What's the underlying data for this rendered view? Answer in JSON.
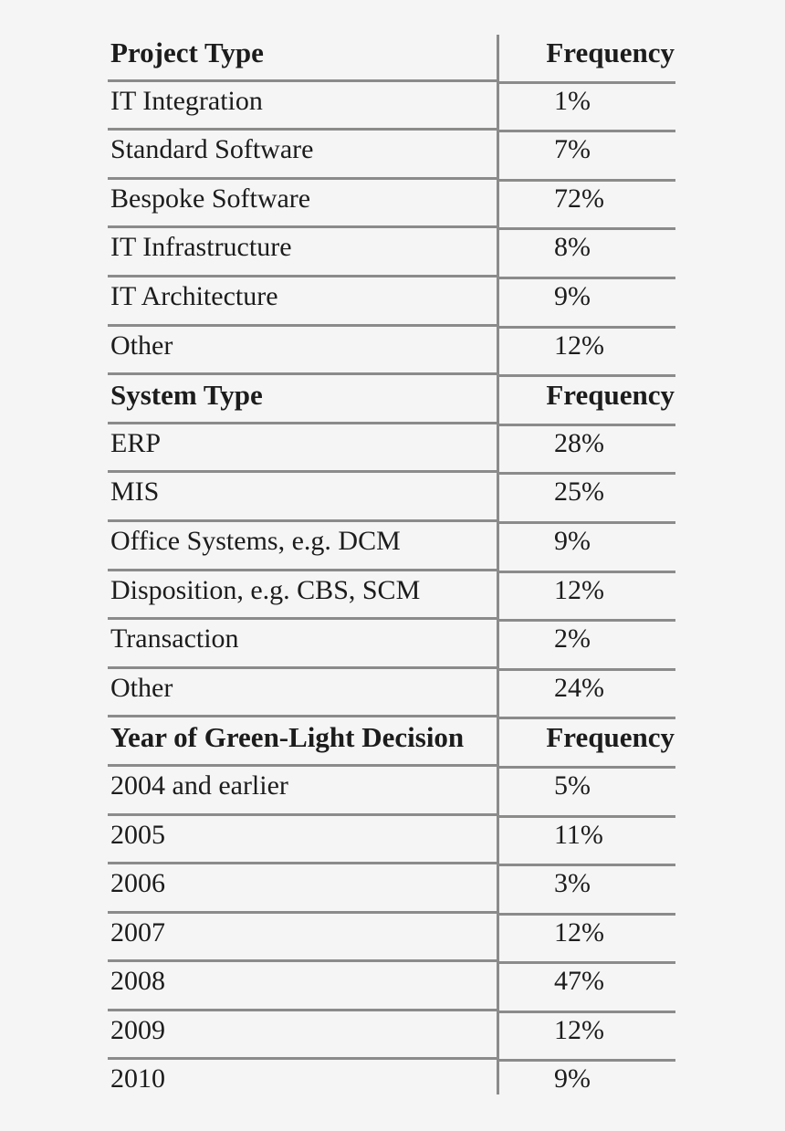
{
  "page": {
    "background_color": "#f5f5f6",
    "text_color": "#1c1c1c",
    "rule_color": "#8b8b8b"
  },
  "table": {
    "frequency_header": "Frequency",
    "sections": [
      {
        "header": {
          "label": "Project Type",
          "value": "Frequency"
        },
        "rows": [
          {
            "label": "IT Integration",
            "value": "1%"
          },
          {
            "label": "Standard Software",
            "value": "7%"
          },
          {
            "label": "Bespoke Software",
            "value": "72%"
          },
          {
            "label": "IT Infrastructure",
            "value": "8%"
          },
          {
            "label": "IT Architecture",
            "value": "9%"
          },
          {
            "label": "Other",
            "value": "12%"
          }
        ]
      },
      {
        "header": {
          "label": "System Type",
          "value": "Frequency"
        },
        "rows": [
          {
            "label": "ERP",
            "value": "28%"
          },
          {
            "label": "MIS",
            "value": "25%"
          },
          {
            "label": "Office Systems, e.g. DCM",
            "value": "9%"
          },
          {
            "label": "Disposition, e.g. CBS, SCM",
            "value": "12%"
          },
          {
            "label": "Transaction",
            "value": "2%"
          },
          {
            "label": "Other",
            "value": "24%"
          }
        ]
      },
      {
        "header": {
          "label": "Year of Green-Light Decision",
          "value": "Frequency"
        },
        "rows": [
          {
            "label": "2004 and earlier",
            "value": "5%"
          },
          {
            "label": "2005",
            "value": "11%"
          },
          {
            "label": "2006",
            "value": "3%"
          },
          {
            "label": "2007",
            "value": "12%"
          },
          {
            "label": "2008",
            "value": "47%"
          },
          {
            "label": "2009",
            "value": "12%"
          },
          {
            "label": "2010",
            "value": "9%"
          }
        ]
      }
    ]
  },
  "chart_data": [
    {
      "type": "table",
      "title": "Project Type",
      "columns": [
        "Project Type",
        "Frequency"
      ],
      "categories": [
        "IT Integration",
        "Standard Software",
        "Bespoke Software",
        "IT Infrastructure",
        "IT Architecture",
        "Other"
      ],
      "values_percent": [
        1,
        7,
        72,
        8,
        9,
        12
      ]
    },
    {
      "type": "table",
      "title": "System Type",
      "columns": [
        "System Type",
        "Frequency"
      ],
      "categories": [
        "ERP",
        "MIS",
        "Office Systems, e.g. DCM",
        "Disposition, e.g. CBS, SCM",
        "Transaction",
        "Other"
      ],
      "values_percent": [
        28,
        25,
        9,
        12,
        2,
        24
      ]
    },
    {
      "type": "table",
      "title": "Year of Green-Light Decision",
      "columns": [
        "Year of Green-Light Decision",
        "Frequency"
      ],
      "categories": [
        "2004 and earlier",
        "2005",
        "2006",
        "2007",
        "2008",
        "2009",
        "2010"
      ],
      "values_percent": [
        5,
        11,
        3,
        12,
        47,
        12,
        9
      ]
    }
  ]
}
